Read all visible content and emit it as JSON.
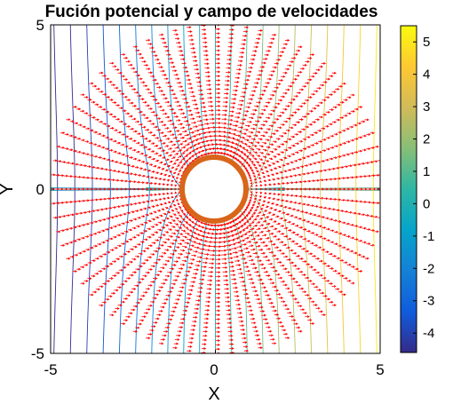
{
  "chart_data": {
    "type": "contour+quiver",
    "title": "Fución potencial y campo de velocidades",
    "xlabel": "X",
    "ylabel": "Y",
    "xlim": [
      -5,
      5
    ],
    "ylim": [
      -5,
      5
    ],
    "xticks": [
      -5,
      0,
      5
    ],
    "yticks": [
      -5,
      0,
      5
    ],
    "xtick_labels": [
      "-5",
      "0",
      "5"
    ],
    "ytick_labels": [
      "-5",
      "0",
      "5"
    ],
    "grid": false,
    "cylinder": {
      "radius": 1,
      "color": "#d9651a"
    },
    "quiver": {
      "color": "#ff0000"
    },
    "colorbar": {
      "position": "right",
      "range": [
        -4.6,
        5.5
      ],
      "ticks": [
        -4,
        -3,
        -2,
        -1,
        0,
        1,
        2,
        3,
        4,
        5
      ],
      "tick_labels": [
        "-4",
        "-3",
        "-2",
        "-1",
        "0",
        "1",
        "2",
        "3",
        "4",
        "5"
      ],
      "colormap": "parula",
      "colors": [
        "#352a87",
        "#0f5cdd",
        "#1481d6",
        "#06a4ca",
        "#2eb7a4",
        "#87bf77",
        "#d1bb59",
        "#fec832",
        "#f9fb0e"
      ]
    },
    "series": []
  }
}
